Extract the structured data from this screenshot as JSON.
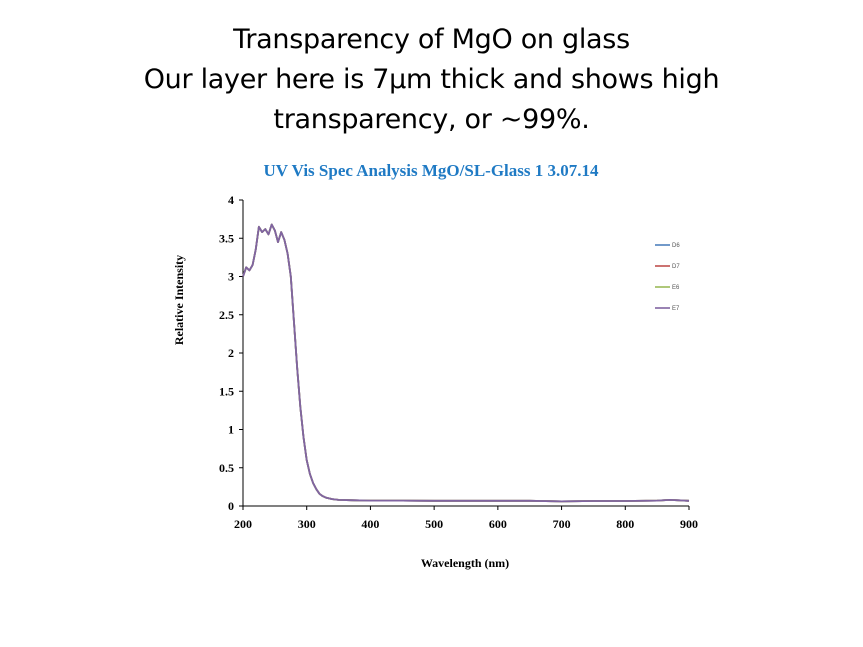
{
  "slide": {
    "title_lines": [
      "Transparency of MgO on glass",
      "Our layer here is 7µm thick and shows high",
      "transparency, or ~99%."
    ]
  },
  "chart_data": {
    "type": "line",
    "title": "UV Vis Spec Analysis MgO/SL-Glass 1 3.07.14",
    "xlabel": "Wavelength (nm)",
    "ylabel": "Relative Intensity",
    "xlim": [
      200,
      900
    ],
    "ylim": [
      0,
      4
    ],
    "xticks": [
      200,
      300,
      400,
      500,
      600,
      700,
      800,
      900
    ],
    "xtick_labels": [
      "200",
      "300",
      "400",
      "500",
      "600",
      "700",
      "800",
      "900"
    ],
    "yticks": [
      0,
      0.5,
      1,
      1.5,
      2,
      2.5,
      3,
      3.5,
      4
    ],
    "ytick_labels": [
      "0",
      "0.5",
      "1",
      "1.5",
      "2",
      "2.5",
      "3",
      "3.5",
      "4"
    ],
    "grid": false,
    "legend_position": "right",
    "x": [
      200,
      205,
      210,
      215,
      220,
      225,
      230,
      235,
      240,
      245,
      250,
      255,
      260,
      265,
      270,
      275,
      280,
      285,
      290,
      295,
      300,
      305,
      310,
      315,
      320,
      325,
      330,
      340,
      350,
      375,
      400,
      450,
      500,
      550,
      600,
      650,
      700,
      750,
      800,
      850,
      870,
      900
    ],
    "series": [
      {
        "name": "D6",
        "color": "#4f81bd",
        "values": [
          3.0,
          3.12,
          3.08,
          3.15,
          3.35,
          3.65,
          3.58,
          3.62,
          3.55,
          3.68,
          3.6,
          3.45,
          3.58,
          3.48,
          3.3,
          3.0,
          2.4,
          1.8,
          1.3,
          0.9,
          0.6,
          0.42,
          0.3,
          0.22,
          0.16,
          0.13,
          0.11,
          0.09,
          0.08,
          0.075,
          0.07,
          0.07,
          0.068,
          0.068,
          0.068,
          0.068,
          0.06,
          0.066,
          0.066,
          0.07,
          0.08,
          0.068
        ]
      },
      {
        "name": "D7",
        "color": "#c0504d",
        "values": [
          3.0,
          3.12,
          3.08,
          3.15,
          3.35,
          3.65,
          3.58,
          3.62,
          3.55,
          3.68,
          3.6,
          3.45,
          3.58,
          3.48,
          3.3,
          3.0,
          2.4,
          1.8,
          1.3,
          0.9,
          0.6,
          0.42,
          0.3,
          0.22,
          0.16,
          0.13,
          0.11,
          0.09,
          0.08,
          0.075,
          0.07,
          0.07,
          0.068,
          0.068,
          0.068,
          0.068,
          0.06,
          0.066,
          0.066,
          0.07,
          0.08,
          0.068
        ]
      },
      {
        "name": "E6",
        "color": "#9bbb59",
        "values": [
          3.0,
          3.12,
          3.08,
          3.15,
          3.35,
          3.65,
          3.58,
          3.62,
          3.55,
          3.68,
          3.6,
          3.45,
          3.58,
          3.48,
          3.3,
          3.0,
          2.4,
          1.8,
          1.3,
          0.9,
          0.6,
          0.42,
          0.3,
          0.22,
          0.16,
          0.13,
          0.11,
          0.09,
          0.08,
          0.075,
          0.07,
          0.07,
          0.068,
          0.068,
          0.068,
          0.068,
          0.06,
          0.066,
          0.066,
          0.07,
          0.08,
          0.068
        ]
      },
      {
        "name": "E7",
        "color": "#8064a2",
        "values": [
          3.0,
          3.12,
          3.08,
          3.15,
          3.35,
          3.65,
          3.58,
          3.62,
          3.55,
          3.68,
          3.6,
          3.45,
          3.58,
          3.48,
          3.3,
          3.0,
          2.4,
          1.8,
          1.3,
          0.9,
          0.6,
          0.42,
          0.3,
          0.22,
          0.16,
          0.13,
          0.11,
          0.09,
          0.08,
          0.075,
          0.07,
          0.07,
          0.068,
          0.068,
          0.068,
          0.068,
          0.06,
          0.066,
          0.066,
          0.07,
          0.08,
          0.068
        ]
      }
    ]
  }
}
